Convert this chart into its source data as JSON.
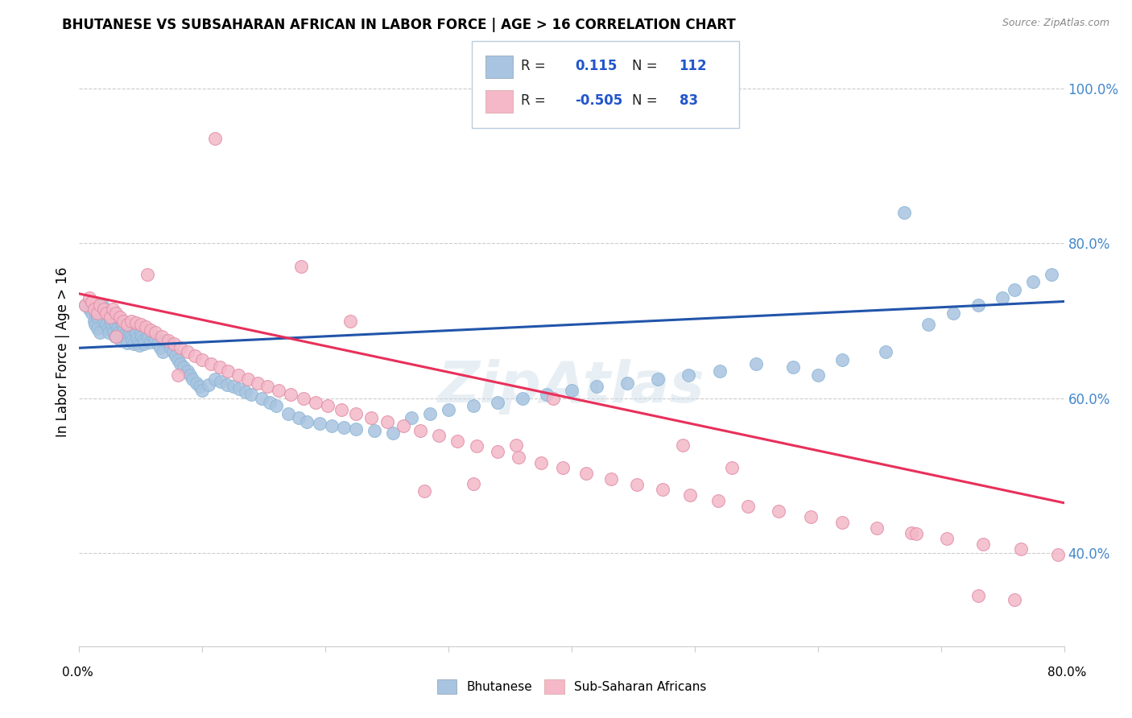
{
  "title": "BHUTANESE VS SUBSAHARAN AFRICAN IN LABOR FORCE | AGE > 16 CORRELATION CHART",
  "source": "Source: ZipAtlas.com",
  "ylabel": "In Labor Force | Age > 16",
  "ytick_labels": [
    "40.0%",
    "60.0%",
    "80.0%",
    "100.0%"
  ],
  "ytick_vals": [
    0.4,
    0.6,
    0.8,
    1.0
  ],
  "xmin": 0.0,
  "xmax": 0.8,
  "ymin": 0.28,
  "ymax": 1.04,
  "blue_color": "#a8c4e0",
  "pink_color": "#f4b8c8",
  "blue_line_color": "#2255aa",
  "pink_line_color": "#e8305a",
  "r_blue": 0.115,
  "n_blue": 112,
  "r_pink": -0.505,
  "n_pink": 83,
  "legend_label_blue": "Bhutanese",
  "legend_label_pink": "Sub-Saharan Africans",
  "blue_trend_x0": 0.0,
  "blue_trend_y0": 0.665,
  "blue_trend_x1": 0.8,
  "blue_trend_y1": 0.725,
  "pink_trend_x0": 0.0,
  "pink_trend_y0": 0.735,
  "pink_trend_x1": 0.8,
  "pink_trend_y1": 0.465,
  "blue_scatter_x": [
    0.005,
    0.008,
    0.01,
    0.012,
    0.013,
    0.015,
    0.015,
    0.017,
    0.018,
    0.019,
    0.02,
    0.021,
    0.022,
    0.023,
    0.024,
    0.025,
    0.026,
    0.027,
    0.028,
    0.029,
    0.03,
    0.031,
    0.032,
    0.033,
    0.034,
    0.035,
    0.036,
    0.037,
    0.038,
    0.039,
    0.04,
    0.041,
    0.042,
    0.043,
    0.044,
    0.045,
    0.046,
    0.047,
    0.048,
    0.049,
    0.05,
    0.051,
    0.052,
    0.053,
    0.055,
    0.056,
    0.058,
    0.06,
    0.062,
    0.064,
    0.066,
    0.068,
    0.07,
    0.072,
    0.074,
    0.076,
    0.078,
    0.08,
    0.082,
    0.085,
    0.088,
    0.09,
    0.092,
    0.095,
    0.098,
    0.1,
    0.105,
    0.11,
    0.115,
    0.12,
    0.125,
    0.13,
    0.135,
    0.14,
    0.148,
    0.155,
    0.16,
    0.17,
    0.178,
    0.185,
    0.195,
    0.205,
    0.215,
    0.225,
    0.24,
    0.255,
    0.27,
    0.285,
    0.3,
    0.32,
    0.34,
    0.36,
    0.38,
    0.4,
    0.42,
    0.445,
    0.47,
    0.495,
    0.52,
    0.55,
    0.58,
    0.62,
    0.655,
    0.69,
    0.71,
    0.73,
    0.75,
    0.76,
    0.775,
    0.79,
    0.6,
    0.67
  ],
  "blue_scatter_y": [
    0.72,
    0.715,
    0.71,
    0.7,
    0.695,
    0.705,
    0.69,
    0.685,
    0.715,
    0.72,
    0.7,
    0.71,
    0.695,
    0.69,
    0.685,
    0.7,
    0.695,
    0.69,
    0.685,
    0.68,
    0.695,
    0.69,
    0.685,
    0.68,
    0.675,
    0.695,
    0.688,
    0.682,
    0.678,
    0.672,
    0.69,
    0.685,
    0.68,
    0.675,
    0.67,
    0.688,
    0.683,
    0.678,
    0.673,
    0.668,
    0.685,
    0.68,
    0.675,
    0.67,
    0.683,
    0.678,
    0.673,
    0.68,
    0.675,
    0.67,
    0.665,
    0.66,
    0.675,
    0.67,
    0.665,
    0.66,
    0.655,
    0.65,
    0.645,
    0.64,
    0.635,
    0.63,
    0.625,
    0.62,
    0.615,
    0.61,
    0.618,
    0.625,
    0.622,
    0.618,
    0.615,
    0.612,
    0.608,
    0.605,
    0.6,
    0.595,
    0.59,
    0.58,
    0.575,
    0.57,
    0.568,
    0.565,
    0.562,
    0.56,
    0.558,
    0.555,
    0.575,
    0.58,
    0.585,
    0.59,
    0.595,
    0.6,
    0.605,
    0.61,
    0.615,
    0.62,
    0.625,
    0.63,
    0.635,
    0.645,
    0.64,
    0.65,
    0.66,
    0.695,
    0.71,
    0.72,
    0.73,
    0.74,
    0.75,
    0.76,
    0.63,
    0.84
  ],
  "pink_scatter_x": [
    0.005,
    0.008,
    0.01,
    0.012,
    0.015,
    0.017,
    0.02,
    0.022,
    0.025,
    0.027,
    0.03,
    0.033,
    0.036,
    0.039,
    0.042,
    0.046,
    0.05,
    0.054,
    0.058,
    0.062,
    0.067,
    0.072,
    0.077,
    0.082,
    0.088,
    0.094,
    0.1,
    0.107,
    0.114,
    0.121,
    0.129,
    0.137,
    0.145,
    0.153,
    0.162,
    0.172,
    0.182,
    0.192,
    0.202,
    0.213,
    0.225,
    0.237,
    0.25,
    0.263,
    0.277,
    0.292,
    0.307,
    0.323,
    0.34,
    0.357,
    0.375,
    0.393,
    0.412,
    0.432,
    0.453,
    0.474,
    0.496,
    0.519,
    0.543,
    0.568,
    0.594,
    0.62,
    0.648,
    0.676,
    0.705,
    0.734,
    0.765,
    0.795,
    0.03,
    0.055,
    0.08,
    0.11,
    0.18,
    0.22,
    0.28,
    0.32,
    0.355,
    0.385,
    0.49,
    0.53,
    0.68,
    0.73,
    0.76
  ],
  "pink_scatter_y": [
    0.72,
    0.73,
    0.725,
    0.715,
    0.71,
    0.72,
    0.715,
    0.71,
    0.705,
    0.715,
    0.71,
    0.705,
    0.7,
    0.695,
    0.7,
    0.698,
    0.695,
    0.692,
    0.688,
    0.685,
    0.68,
    0.675,
    0.67,
    0.665,
    0.66,
    0.655,
    0.65,
    0.645,
    0.64,
    0.635,
    0.63,
    0.625,
    0.62,
    0.615,
    0.61,
    0.605,
    0.6,
    0.595,
    0.59,
    0.585,
    0.58,
    0.575,
    0.57,
    0.565,
    0.558,
    0.552,
    0.545,
    0.538,
    0.531,
    0.524,
    0.517,
    0.51,
    0.503,
    0.496,
    0.489,
    0.482,
    0.475,
    0.468,
    0.461,
    0.454,
    0.447,
    0.44,
    0.433,
    0.426,
    0.419,
    0.412,
    0.405,
    0.398,
    0.68,
    0.76,
    0.63,
    0.935,
    0.77,
    0.7,
    0.48,
    0.49,
    0.54,
    0.6,
    0.54,
    0.51,
    0.425,
    0.345,
    0.34
  ]
}
